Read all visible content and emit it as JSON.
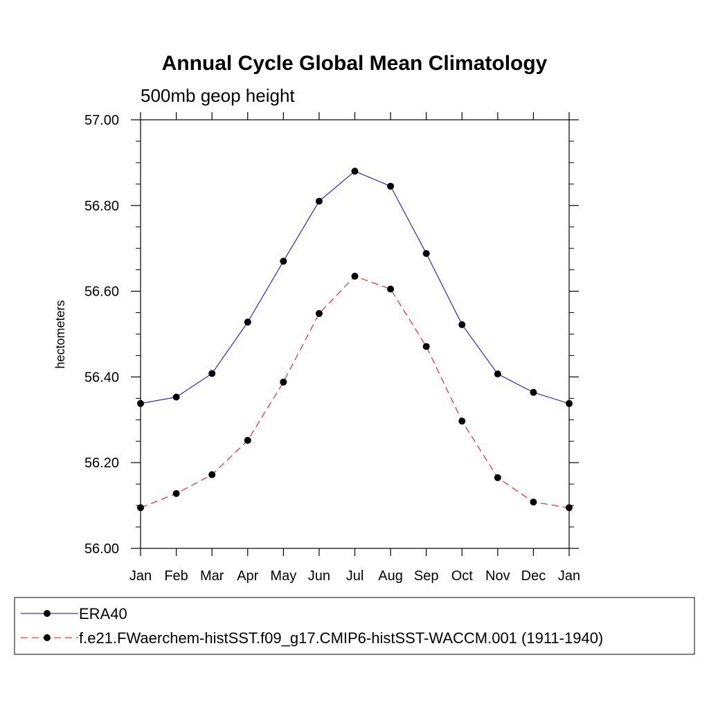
{
  "chart_data": {
    "type": "line",
    "title": "Annual Cycle Global Mean Climatology",
    "subtitle": "500mb geop height",
    "ylabel": "hectometers",
    "xlabel": "",
    "categories": [
      "Jan",
      "Feb",
      "Mar",
      "Apr",
      "May",
      "Jun",
      "Jul",
      "Aug",
      "Sep",
      "Oct",
      "Nov",
      "Dec",
      "Jan"
    ],
    "ylim": [
      56.0,
      57.0
    ],
    "yticks": [
      "56.00",
      "56.20",
      "56.40",
      "56.60",
      "56.80",
      "57.00"
    ],
    "grid": false,
    "legend_position": "bottom",
    "series": [
      {
        "name": "ERA40",
        "color": "#0000ff",
        "dash": "solid",
        "marker": "filled-circle",
        "values": [
          56.338,
          56.353,
          56.408,
          56.528,
          56.67,
          56.81,
          56.88,
          56.845,
          56.688,
          56.522,
          56.407,
          56.364,
          56.338
        ]
      },
      {
        "name": "f.e21.FWaerchem-histSST.f09_g17.CMIP6-histSST-WACCM.001 (1911-1940)",
        "color": "#ff0000",
        "dash": "dashed",
        "marker": "filled-circle",
        "values": [
          56.095,
          56.128,
          56.172,
          56.252,
          56.388,
          56.548,
          56.635,
          56.605,
          56.471,
          56.297,
          56.165,
          56.108,
          56.095
        ]
      }
    ]
  }
}
